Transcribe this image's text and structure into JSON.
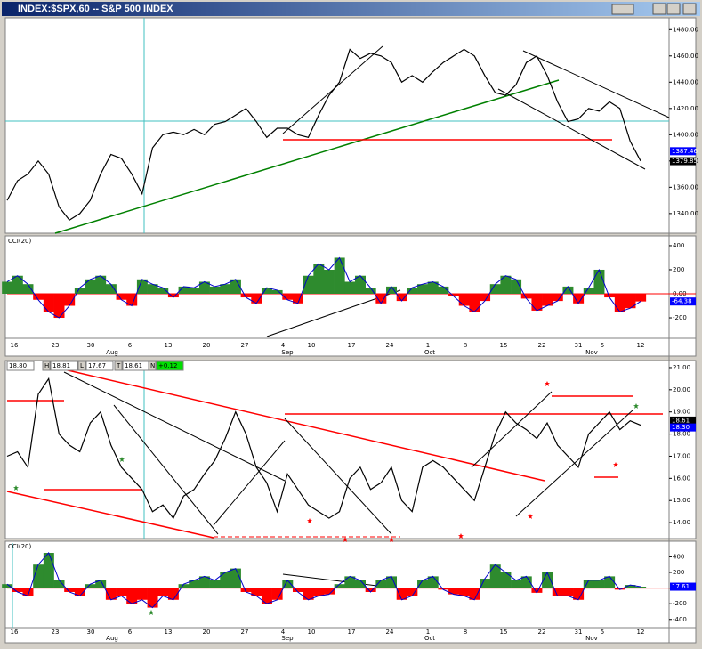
{
  "window_title": "INDEX:$SPX,60 -- S&P 500 INDEX",
  "x_axis": {
    "days": [
      "16",
      "23",
      "30",
      "6",
      "13",
      "20",
      "27",
      "4",
      "10",
      "17",
      "24",
      "1",
      "8",
      "15",
      "22",
      "31",
      "5",
      "12"
    ],
    "months": [
      "Aug",
      "Sep",
      "Oct",
      "Nov"
    ]
  },
  "chart_data": [
    {
      "type": "line",
      "color": "#000000",
      "ylim": [
        1325,
        1489
      ],
      "yticks": [
        {
          "value": 1340,
          "label": "1340.00"
        },
        {
          "value": 1360,
          "label": "1360.00"
        },
        {
          "value": 1380,
          "label": "1380.00"
        },
        {
          "value": 1400,
          "label": "1400.00"
        },
        {
          "value": 1420,
          "label": "1420.00"
        },
        {
          "value": 1440,
          "label": "1440.00"
        },
        {
          "value": 1460,
          "label": "1460.00"
        },
        {
          "value": 1480,
          "label": "1480.00"
        }
      ],
      "values": [
        1350,
        1365,
        1370,
        1380,
        1370,
        1345,
        1335,
        1340,
        1350,
        1370,
        1385,
        1382,
        1370,
        1355,
        1390,
        1400,
        1402,
        1400,
        1404,
        1400,
        1408,
        1410,
        1415,
        1420,
        1410,
        1398,
        1405,
        1405,
        1400,
        1398,
        1415,
        1430,
        1440,
        1465,
        1458,
        1462,
        1460,
        1455,
        1440,
        1445,
        1440,
        1448,
        1455,
        1460,
        1465,
        1460,
        1445,
        1432,
        1430,
        1438,
        1455,
        1460,
        1445,
        1425,
        1410,
        1412,
        1420,
        1418,
        1425,
        1420,
        1395,
        1380
      ],
      "markers": [
        {
          "value": 1387.46,
          "color": "#0000ff"
        },
        {
          "value": 1379.85,
          "color": "#000000"
        }
      ]
    },
    {
      "type": "cci",
      "label": "CCI(20)",
      "positive_color": "#2e8b2e",
      "negative_color": "#ff0000",
      "color": "#0000cc",
      "ylim": [
        -370,
        481
      ],
      "yticks": [
        -200,
        {
          "value": 0,
          "label": "0.00"
        },
        200,
        400
      ],
      "values": [
        100,
        150,
        80,
        -50,
        -150,
        -200,
        -100,
        50,
        120,
        150,
        80,
        -50,
        -100,
        120,
        80,
        50,
        -30,
        60,
        50,
        100,
        60,
        80,
        120,
        -30,
        -80,
        50,
        30,
        -50,
        -80,
        150,
        250,
        200,
        300,
        100,
        150,
        50,
        -80,
        60,
        -60,
        50,
        80,
        100,
        60,
        -20,
        -100,
        -150,
        -60,
        80,
        150,
        120,
        -40,
        -140,
        -100,
        -60,
        60,
        -80,
        50,
        200,
        -30,
        -150,
        -120,
        -64
      ],
      "markers": [
        {
          "value": -64.38,
          "color": "#0000ff"
        }
      ]
    },
    {
      "type": "line",
      "color": "#000000",
      "header": [
        "18.80",
        "H",
        "18.81",
        "L",
        "17.67",
        "T",
        "18.61",
        "N",
        "+0.12"
      ],
      "ylim": [
        13.28,
        21.32
      ],
      "yticks": [
        {
          "value": 14,
          "label": "14.00"
        },
        {
          "value": 15,
          "label": "15.00"
        },
        {
          "value": 16,
          "label": "16.00"
        },
        {
          "value": 17,
          "label": "17.00"
        },
        {
          "value": 18,
          "label": "18.00"
        },
        {
          "value": 19,
          "label": "19.00"
        },
        {
          "value": 20,
          "label": "20.00"
        },
        {
          "value": 21,
          "label": "21.00"
        }
      ],
      "values": [
        17,
        17.2,
        16.5,
        19.8,
        20.5,
        18,
        17.5,
        17.2,
        18.5,
        19,
        17.5,
        16.5,
        16,
        15.5,
        14.5,
        14.8,
        14.2,
        15.2,
        15.5,
        16.2,
        16.8,
        17.8,
        19,
        18,
        16.5,
        15.8,
        14.5,
        16.2,
        15.5,
        14.8,
        14.5,
        14.2,
        14.5,
        16,
        16.5,
        15.5,
        15.8,
        16.5,
        15,
        14.5,
        16.5,
        16.8,
        16.5,
        16,
        15.5,
        15,
        16.5,
        18,
        19,
        18.5,
        18.2,
        17.8,
        18.5,
        17.5,
        17,
        16.5,
        18,
        18.5,
        19,
        18.2,
        18.6,
        18.4
      ],
      "markers": [
        {
          "value": 18.61,
          "color": "#000000"
        },
        {
          "value": 18.3,
          "label": "18.30",
          "color": "#0000ff"
        }
      ]
    },
    {
      "type": "cci",
      "label": "CCI(20)",
      "positive_color": "#2e8b2e",
      "negative_color": "#ff0000",
      "color": "#0000cc",
      "ylim": [
        -505,
        598
      ],
      "yticks": [
        -400,
        -200,
        {
          "value": 0,
          "label": "0.00"
        },
        200,
        400
      ],
      "values": [
        50,
        -50,
        -100,
        300,
        450,
        100,
        -50,
        -100,
        50,
        100,
        -150,
        -100,
        -200,
        -150,
        -250,
        -100,
        -150,
        50,
        100,
        150,
        100,
        200,
        250,
        -50,
        -100,
        -200,
        -150,
        100,
        -50,
        -150,
        -100,
        -80,
        50,
        150,
        100,
        -50,
        100,
        150,
        -150,
        -100,
        100,
        150,
        -20,
        -80,
        -100,
        -150,
        120,
        300,
        200,
        100,
        150,
        -60,
        200,
        -100,
        -100,
        -150,
        100,
        100,
        150,
        -20,
        40,
        18
      ],
      "markers": [
        {
          "value": 17.61,
          "color": "#0000ff"
        }
      ]
    }
  ]
}
